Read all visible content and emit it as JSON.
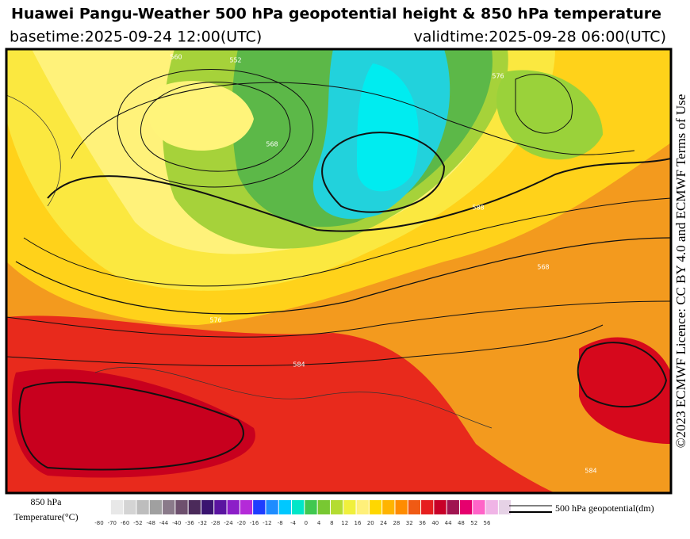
{
  "header": {
    "title": "Huawei Pangu-Weather 500 hPa geopotential height & 850 hPa temperature",
    "basetime": "basetime:2025-09-24 12:00(UTC)",
    "validtime": "validtime:2025-09-28 06:00(UTC)"
  },
  "credit": "©2023 ECMWF Licence: CC BY 4.0 and ECMWF Terms of Use",
  "map": {
    "contour_labels": [
      560,
      552,
      568,
      576,
      584,
      588,
      576,
      584,
      568
    ]
  },
  "colorbar": {
    "title": [
      "850 hPa",
      "Temperature(°C)"
    ],
    "ticks": [
      -80,
      -70,
      -60,
      -52,
      -48,
      -44,
      -40,
      -36,
      -32,
      -28,
      -24,
      -20,
      -16,
      -12,
      -8,
      -4,
      0,
      4,
      8,
      12,
      16,
      20,
      24,
      28,
      32,
      36,
      40,
      44,
      48,
      52,
      56
    ],
    "colors": [
      "#e8e8e8",
      "#d4d4d4",
      "#bdbdbd",
      "#a0a0a0",
      "#8a7a8a",
      "#6e506e",
      "#4b2a5a",
      "#3a1470",
      "#5a14a0",
      "#8c1ec8",
      "#b42ad8",
      "#1e3cff",
      "#1e8cff",
      "#00c8ff",
      "#00e6c8",
      "#40c850",
      "#78c832",
      "#b4dc32",
      "#f0f03c",
      "#fff07a",
      "#ffd700",
      "#ffb400",
      "#ff8c00",
      "#f05a14",
      "#e61e1e",
      "#c80028",
      "#a01450",
      "#e6006e",
      "#ff64c8",
      "#f0b4e6",
      "#e6d2e6"
    ]
  },
  "legend": {
    "label": "500 hPa geopotential(dm)"
  }
}
